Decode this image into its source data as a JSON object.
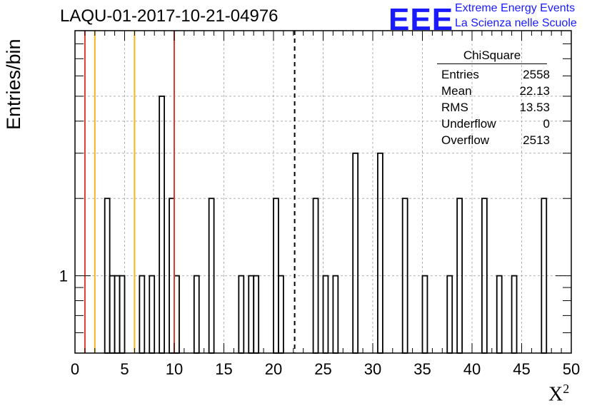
{
  "title": "LAQU-01-2017-10-21-04976",
  "logo": {
    "mark": "EEE",
    "line1": "Extreme Energy Events",
    "line2": "La Scienza nelle Scuole",
    "color": "#1a1aff"
  },
  "stats": {
    "header": "ChiSquare",
    "rows": [
      {
        "label": "Entries",
        "value": "2558"
      },
      {
        "label": "Mean",
        "value": "22.13"
      },
      {
        "label": "RMS",
        "value": "13.53"
      },
      {
        "label": "Underflow",
        "value": "0"
      },
      {
        "label": "Overflow",
        "value": "2513"
      }
    ]
  },
  "chart_data": {
    "type": "histogram",
    "title": "LAQU-01-2017-10-21-04976",
    "xlabel": "X",
    "xlabel_sup": "2",
    "ylabel": "Entries/bin",
    "xlim": [
      0,
      50
    ],
    "y_scale": "log",
    "ylim": [
      0.5,
      9
    ],
    "y_tick_labels": [
      {
        "value": 1,
        "label": "1"
      }
    ],
    "x_ticks": [
      0,
      5,
      10,
      15,
      20,
      25,
      30,
      35,
      40,
      45,
      50
    ],
    "grid": true,
    "bin_width": 0.5,
    "bins": [
      {
        "x": 3.0,
        "count": 2
      },
      {
        "x": 3.5,
        "count": 1
      },
      {
        "x": 4.0,
        "count": 1
      },
      {
        "x": 4.5,
        "count": 1
      },
      {
        "x": 6.5,
        "count": 1
      },
      {
        "x": 7.5,
        "count": 1
      },
      {
        "x": 8.5,
        "count": 5
      },
      {
        "x": 9.5,
        "count": 2
      },
      {
        "x": 10.0,
        "count": 1
      },
      {
        "x": 12.0,
        "count": 1
      },
      {
        "x": 13.5,
        "count": 2
      },
      {
        "x": 16.5,
        "count": 1
      },
      {
        "x": 17.5,
        "count": 1
      },
      {
        "x": 18.0,
        "count": 1
      },
      {
        "x": 20.0,
        "count": 2
      },
      {
        "x": 20.5,
        "count": 1
      },
      {
        "x": 24.0,
        "count": 2
      },
      {
        "x": 25.0,
        "count": 1
      },
      {
        "x": 26.0,
        "count": 1
      },
      {
        "x": 28.0,
        "count": 3
      },
      {
        "x": 30.5,
        "count": 3
      },
      {
        "x": 33.0,
        "count": 2
      },
      {
        "x": 35.0,
        "count": 1
      },
      {
        "x": 37.5,
        "count": 1
      },
      {
        "x": 38.5,
        "count": 2
      },
      {
        "x": 41.0,
        "count": 2
      },
      {
        "x": 42.5,
        "count": 1
      },
      {
        "x": 44.0,
        "count": 1
      },
      {
        "x": 47.0,
        "count": 2
      }
    ],
    "vertical_lines": [
      {
        "x": 1,
        "color": "#e03a2a",
        "style": "solid"
      },
      {
        "x": 10,
        "color": "#e03a2a",
        "style": "solid"
      },
      {
        "x": 2,
        "color": "#f2b61e",
        "style": "solid"
      },
      {
        "x": 6,
        "color": "#f2b61e",
        "style": "solid"
      },
      {
        "x": 22.13,
        "color": "#000000",
        "style": "dashed"
      }
    ]
  }
}
